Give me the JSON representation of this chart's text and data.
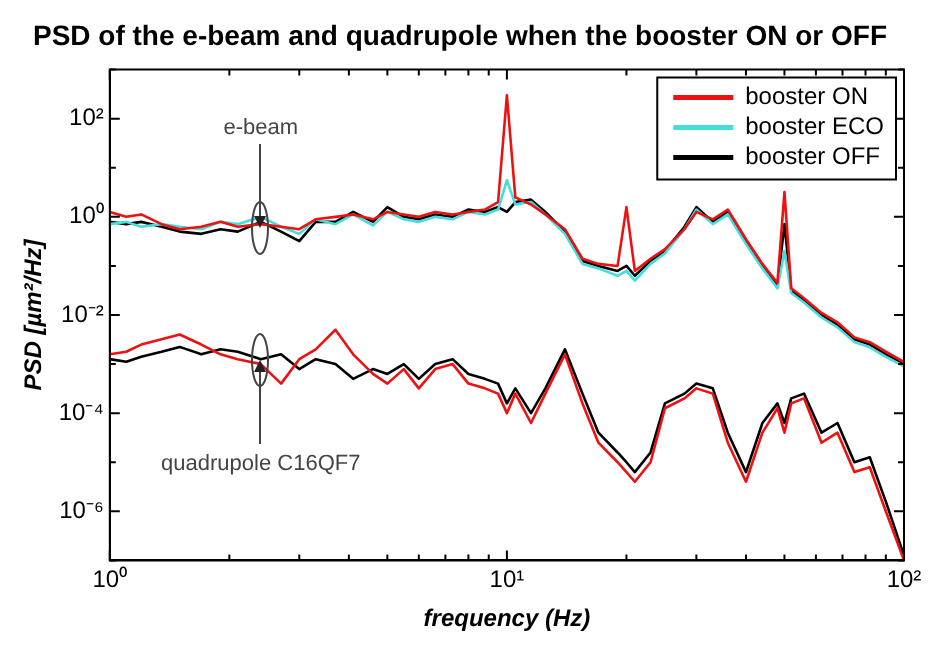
{
  "chart_data": {
    "type": "line",
    "title": "PSD of the e-beam and quadrupole when the booster ON or OFF",
    "xlabel": "frequency (Hz)",
    "ylabel": "PSD [µm²/Hz]",
    "log": "xy",
    "grid": false,
    "legend": "top right",
    "xlim": [
      1,
      100
    ],
    "ylim": [
      1e-07,
      1000
    ],
    "xticks": [
      {
        "value": 1,
        "label": "10⁰"
      },
      {
        "value": 2,
        "label": null
      },
      {
        "value": 3,
        "label": null
      },
      {
        "value": 4,
        "label": null
      },
      {
        "value": 5,
        "label": null
      },
      {
        "value": 6,
        "label": null
      },
      {
        "value": 7,
        "label": null
      },
      {
        "value": 8,
        "label": null
      },
      {
        "value": 9,
        "label": null
      },
      {
        "value": 10,
        "label": "10¹"
      },
      {
        "value": 20,
        "label": null
      },
      {
        "value": 30,
        "label": null
      },
      {
        "value": 40,
        "label": null
      },
      {
        "value": 50,
        "label": null
      },
      {
        "value": 60,
        "label": null
      },
      {
        "value": 70,
        "label": null
      },
      {
        "value": 80,
        "label": null
      },
      {
        "value": 90,
        "label": null
      },
      {
        "value": 100,
        "label": "10²"
      }
    ],
    "yticks": [
      {
        "value": 1e-07,
        "label": null
      },
      {
        "value": 1e-06,
        "label": "10⁻⁶"
      },
      {
        "value": 1e-05,
        "label": null
      },
      {
        "value": 0.0001,
        "label": "10⁻⁴"
      },
      {
        "value": 0.001,
        "label": null
      },
      {
        "value": 0.01,
        "label": "10⁻²"
      },
      {
        "value": 0.1,
        "label": null
      },
      {
        "value": 1,
        "label": "10⁰"
      },
      {
        "value": 10,
        "label": null
      },
      {
        "value": 100,
        "label": "10²"
      },
      {
        "value": 1000,
        "label": null
      }
    ],
    "x": [
      1,
      1.1,
      1.2,
      1.35,
      1.5,
      1.7,
      1.9,
      2.1,
      2.4,
      2.7,
      3,
      3.3,
      3.7,
      4.1,
      4.6,
      5,
      5.5,
      6,
      6.6,
      7.3,
      8,
      8.8,
      9.5,
      10,
      10.5,
      11.5,
      12.5,
      14,
      15.5,
      17,
      19,
      20,
      21,
      23,
      25,
      28,
      30,
      33,
      36,
      40,
      44,
      48,
      50,
      52,
      56,
      62,
      68,
      75,
      82,
      90,
      100
    ],
    "series": [
      {
        "name": "booster ON",
        "color": "#ee1111",
        "values": [
          1.26,
          1,
          1.12,
          0.71,
          0.56,
          0.63,
          0.79,
          0.63,
          0.71,
          0.63,
          0.56,
          0.89,
          1,
          1.12,
          0.89,
          1.26,
          1.12,
          1,
          1.26,
          1.12,
          1.26,
          1.41,
          2,
          300,
          2.5,
          1.78,
          1.12,
          0.56,
          0.14,
          0.11,
          0.1,
          1.58,
          0.079,
          0.14,
          0.22,
          0.56,
          1.26,
          0.89,
          1.41,
          0.35,
          0.11,
          0.045,
          3.2,
          0.035,
          0.022,
          0.011,
          0.0071,
          0.0035,
          0.0028,
          0.0018,
          0.0011
        ]
      },
      {
        "name": "booster ECO",
        "color": "#44dddd",
        "values": [
          0.71,
          0.79,
          0.63,
          0.71,
          0.63,
          0.56,
          0.79,
          0.71,
          1,
          0.63,
          0.45,
          0.89,
          0.71,
          1.12,
          0.67,
          1.26,
          0.89,
          0.79,
          1,
          0.89,
          1.26,
          1.12,
          1.41,
          5.6,
          1.78,
          2,
          1.12,
          0.45,
          0.11,
          0.089,
          0.063,
          0.079,
          0.05,
          0.11,
          0.18,
          0.56,
          1.41,
          0.71,
          1.12,
          0.28,
          0.089,
          0.035,
          0.2,
          0.028,
          0.018,
          0.0089,
          0.0056,
          0.0028,
          0.0022,
          0.0014,
          0.0009
        ]
      },
      {
        "name": "booster OFF",
        "color": "#000000",
        "values": [
          0.79,
          0.71,
          0.79,
          0.63,
          0.5,
          0.45,
          0.56,
          0.5,
          0.79,
          0.5,
          0.32,
          0.79,
          0.79,
          1.26,
          0.79,
          1.58,
          1,
          0.89,
          1.12,
          1,
          1.41,
          1.26,
          1.58,
          1.26,
          2,
          2.24,
          1.26,
          0.5,
          0.126,
          0.1,
          0.079,
          0.1,
          0.063,
          0.126,
          0.2,
          0.63,
          1.58,
          0.79,
          1.26,
          0.32,
          0.1,
          0.04,
          0.71,
          0.032,
          0.02,
          0.01,
          0.0063,
          0.0032,
          0.0025,
          0.0016,
          0.001
        ]
      },
      {
        "color": "#ee1111",
        "values": [
          0.00158,
          0.00178,
          0.0025,
          0.0032,
          0.004,
          0.0025,
          0.00158,
          0.00126,
          0.001,
          0.0004,
          0.00126,
          0.002,
          0.005,
          0.00158,
          0.00063,
          0.0004,
          0.00079,
          0.00032,
          0.00079,
          0.001,
          0.0004,
          0.00032,
          0.00025,
          0.0001,
          0.00025,
          6.3e-05,
          0.00025,
          0.00158,
          0.000158,
          2.5e-05,
          1e-05,
          6.3e-06,
          4e-06,
          1e-05,
          0.000126,
          0.0002,
          0.00032,
          0.00025,
          2.5e-05,
          4e-06,
          4e-05,
          0.000126,
          4e-05,
          0.000158,
          0.0002,
          2.5e-05,
          4e-05,
          6.3e-06,
          7.9e-06,
          1e-06,
          1e-07
        ]
      },
      {
        "color": "#000000",
        "values": [
          0.00126,
          0.00112,
          0.00141,
          0.00178,
          0.00224,
          0.00158,
          0.002,
          0.00178,
          0.00126,
          0.00158,
          0.00079,
          0.00126,
          0.001,
          0.0005,
          0.00079,
          0.00063,
          0.001,
          0.0005,
          0.001,
          0.00126,
          0.00063,
          0.0005,
          0.0004,
          0.000158,
          0.00032,
          0.0001,
          0.00032,
          0.002,
          0.00025,
          4e-05,
          1.58e-05,
          1e-05,
          6.3e-06,
          1.58e-05,
          0.000158,
          0.00025,
          0.0004,
          0.00032,
          4e-05,
          6.3e-06,
          6.3e-05,
          0.000158,
          6.3e-05,
          0.0002,
          0.00025,
          4e-05,
          6.3e-05,
          1e-05,
          1.26e-05,
          1.58e-06,
          1.26e-07
        ]
      }
    ],
    "annotations": [
      {
        "text": "e-beam",
        "x": 2.4,
        "y": 0.6
      },
      {
        "text": "quadrupole C16QF7",
        "x": 2.4,
        "y": 0.0012
      }
    ]
  }
}
